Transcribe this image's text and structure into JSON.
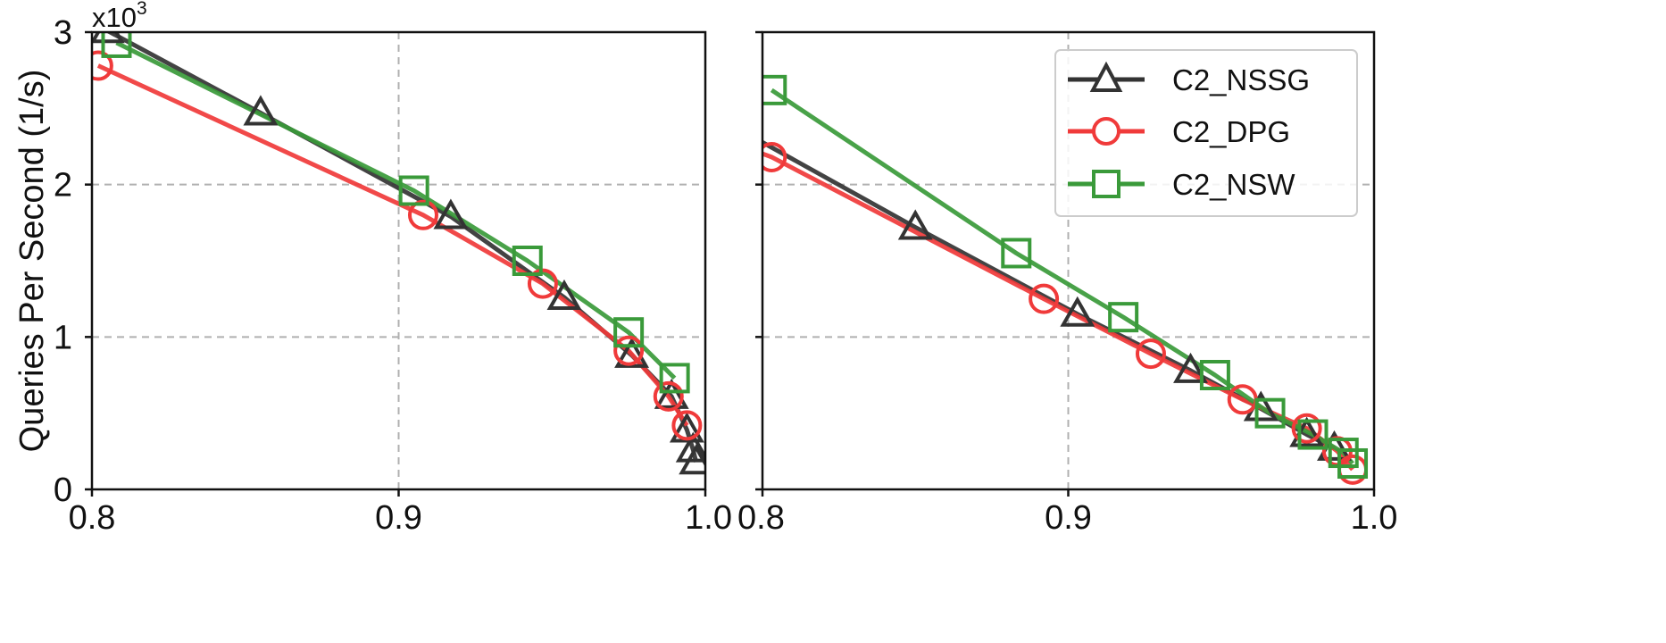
{
  "figure": {
    "ylabel": "Queries Per Second (1/s)",
    "y_multiplier": "x10",
    "y_multiplier_exp": "3"
  },
  "legend": {
    "placement": "top-right of right panel",
    "entries": [
      {
        "label": "C2_NSSG",
        "color": "#333333",
        "marker": "triangle"
      },
      {
        "label": "C2_DPG",
        "color": "#f03a3a",
        "marker": "circle"
      },
      {
        "label": "C2_NSW",
        "color": "#3a9a3a",
        "marker": "square"
      }
    ]
  },
  "chart_data": [
    {
      "type": "line",
      "panel": "left",
      "grid": true,
      "xlim": [
        0.8,
        1.0
      ],
      "ylim": [
        0,
        3
      ],
      "xticks": [
        "0.8",
        "0.9",
        "1.0"
      ],
      "yticks": [
        "0",
        "1",
        "2",
        "3"
      ],
      "series": [
        {
          "name": "C2_NSSG",
          "x": [
            0.805,
            0.855,
            0.917,
            0.954,
            0.976,
            0.989,
            0.994,
            0.996,
            0.997
          ],
          "y": [
            3.01,
            2.47,
            1.79,
            1.26,
            0.88,
            0.61,
            0.39,
            0.26,
            0.18
          ]
        },
        {
          "name": "C2_DPG",
          "x": [
            0.802,
            0.908,
            0.947,
            0.975,
            0.988,
            0.994
          ],
          "y": [
            2.78,
            1.8,
            1.35,
            0.91,
            0.61,
            0.42
          ]
        },
        {
          "name": "C2_NSW",
          "x": [
            0.808,
            0.905,
            0.942,
            0.975,
            0.99
          ],
          "y": [
            2.93,
            1.96,
            1.5,
            1.03,
            0.73
          ]
        }
      ]
    },
    {
      "type": "line",
      "panel": "right",
      "grid": true,
      "xlim": [
        0.8,
        1.0
      ],
      "ylim": [
        0,
        3
      ],
      "xticks": [
        "0.8",
        "0.9",
        "1.0"
      ],
      "yticks": [
        "0",
        "1",
        "2",
        "3"
      ],
      "series": [
        {
          "name": "C2_NSSG",
          "x": [
            0.78,
            0.85,
            0.903,
            0.94,
            0.963,
            0.978,
            0.987
          ],
          "y": [
            2.5,
            1.72,
            1.15,
            0.78,
            0.53,
            0.36,
            0.27
          ]
        },
        {
          "name": "C2_DPG",
          "x": [
            0.78,
            0.803,
            0.892,
            0.927,
            0.957,
            0.978,
            0.988,
            0.993
          ],
          "y": [
            2.35,
            2.18,
            1.25,
            0.89,
            0.59,
            0.4,
            0.25,
            0.13
          ]
        },
        {
          "name": "C2_NSW",
          "x": [
            0.803,
            0.883,
            0.918,
            0.948,
            0.966,
            0.98,
            0.99,
            0.993
          ],
          "y": [
            2.62,
            1.55,
            1.13,
            0.75,
            0.5,
            0.36,
            0.24,
            0.17
          ]
        }
      ]
    }
  ]
}
